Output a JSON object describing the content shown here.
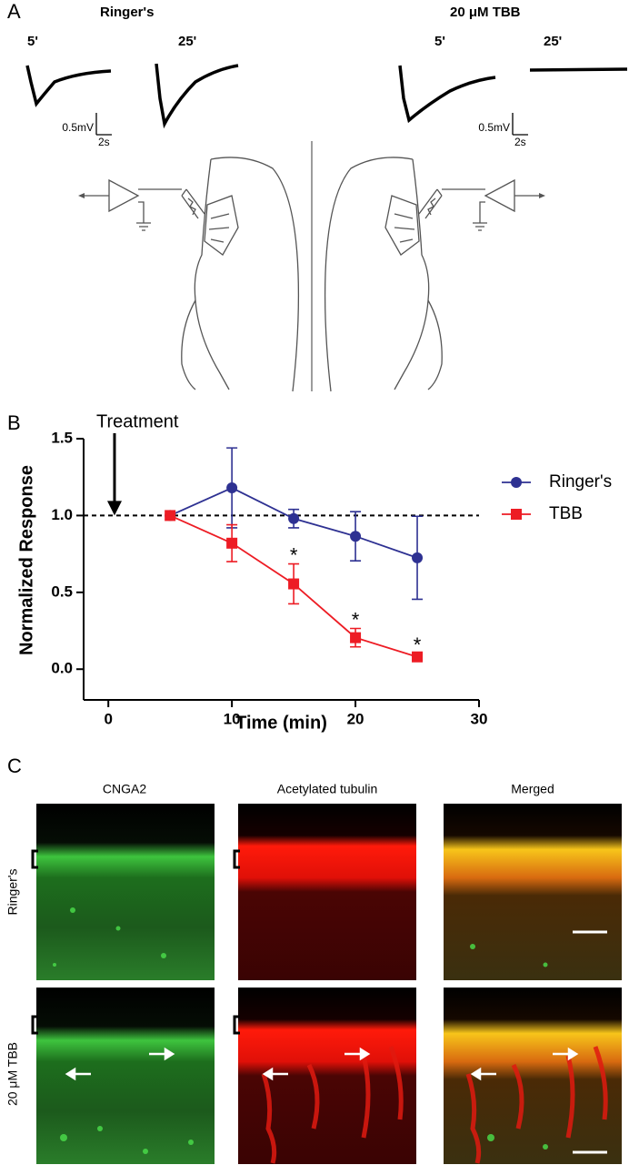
{
  "figure": {
    "panel_a": {
      "label": "A",
      "left_title": "Ringer's",
      "right_title": "20 μM TBB",
      "trace_labels": [
        "5'",
        "25'",
        "5'",
        "25'"
      ],
      "scale_bars": [
        {
          "voltage": "0.5mV",
          "time": "2s"
        },
        {
          "voltage": "0.5mV",
          "time": "2s"
        }
      ]
    },
    "panel_b": {
      "label": "B"
    },
    "panel_c": {
      "label": "C",
      "columns": [
        "CNGA2",
        "Acetylated tubulin",
        "Merged"
      ],
      "rows": [
        "Ringer's",
        "20 μM TBB"
      ]
    }
  },
  "chart_data": {
    "type": "line",
    "x_label": "Time (min)",
    "y_label": "Normalized Response",
    "x": [
      5,
      10,
      15,
      20,
      25
    ],
    "series": [
      {
        "name": "Ringer's",
        "color": "#2e3192",
        "marker": "circle",
        "values": [
          1.0,
          1.18,
          0.98,
          0.865,
          0.725
        ],
        "errors": [
          0,
          0.26,
          0.06,
          0.16,
          0.27
        ]
      },
      {
        "name": "TBB",
        "color": "#ed1c24",
        "marker": "square",
        "values": [
          1.0,
          0.82,
          0.555,
          0.205,
          0.08
        ],
        "errors": [
          0,
          0.12,
          0.13,
          0.06,
          0.02
        ],
        "significance": [
          null,
          null,
          "*",
          "*",
          "*"
        ]
      }
    ],
    "reference_line": 1.0,
    "treatment": {
      "label": "Treatment",
      "x": 0.5
    },
    "xlim": [
      -2,
      30
    ],
    "ylim": [
      -0.2,
      1.5
    ],
    "xticks": [
      0,
      10,
      20,
      30
    ],
    "yticks": [
      {
        "value": 0,
        "label": "0.0"
      },
      0.5,
      {
        "value": 1,
        "label": "1.0"
      },
      1.5
    ],
    "legend": "right"
  }
}
